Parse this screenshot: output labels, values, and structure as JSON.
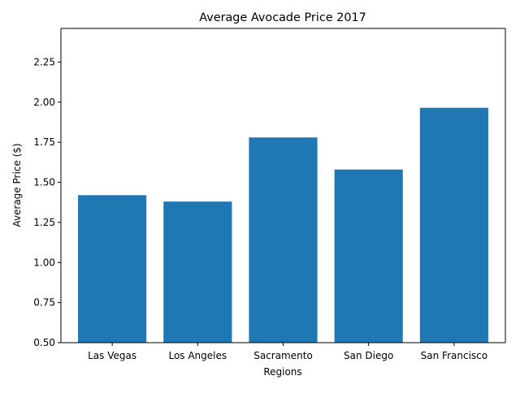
{
  "chart_data": {
    "type": "bar",
    "title": "Average Avocade Price 2017",
    "xlabel": "Regions",
    "ylabel": "Average Price ($)",
    "categories": [
      "Las Vegas",
      "Los Angeles",
      "Sacramento",
      "San Diego",
      "San Francisco"
    ],
    "values": [
      1.42,
      1.38,
      1.78,
      1.58,
      1.965
    ],
    "ylim": [
      0.5,
      2.46
    ],
    "yticks": [
      "0.50",
      "0.75",
      "1.00",
      "1.25",
      "1.50",
      "1.75",
      "2.00",
      "2.25"
    ],
    "grid": false,
    "bar_color": "#1f77b4"
  }
}
